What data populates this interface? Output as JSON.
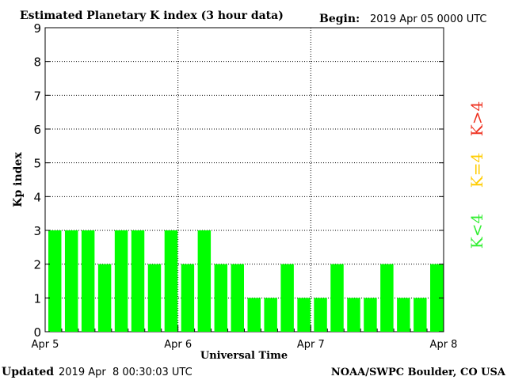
{
  "chart_data": {
    "type": "bar",
    "title": "Estimated Planetary K index (3 hour data)",
    "begin_label": "Begin:",
    "begin_value": "2019 Apr 05 0000 UTC",
    "xlabel": "Universal Time",
    "ylabel": "Kp index",
    "ylim": [
      0,
      9
    ],
    "y_ticks": [
      "0",
      "1",
      "2",
      "3",
      "4",
      "5",
      "6",
      "7",
      "8",
      "9"
    ],
    "x_ticks": [
      "Apr 5",
      "Apr 6",
      "Apr 7",
      "Apr 8"
    ],
    "values": [
      3,
      3,
      3,
      2,
      3,
      3,
      2,
      3,
      2,
      3,
      2,
      2,
      1,
      1,
      2,
      1,
      1,
      2,
      1,
      1,
      2,
      1,
      1,
      2
    ],
    "grid": true,
    "bar_color": "#00ff00",
    "legend": [
      {
        "label": "K<4",
        "color": "#33ee33"
      },
      {
        "label": "K=4",
        "color": "#ffcc00"
      },
      {
        "label": "K>4",
        "color": "#ee3322"
      }
    ]
  },
  "footer": {
    "updated_label": "Updated",
    "updated_value": "2019 Apr  8 00:30:03 UTC",
    "source": "NOAA/SWPC Boulder, CO USA"
  }
}
